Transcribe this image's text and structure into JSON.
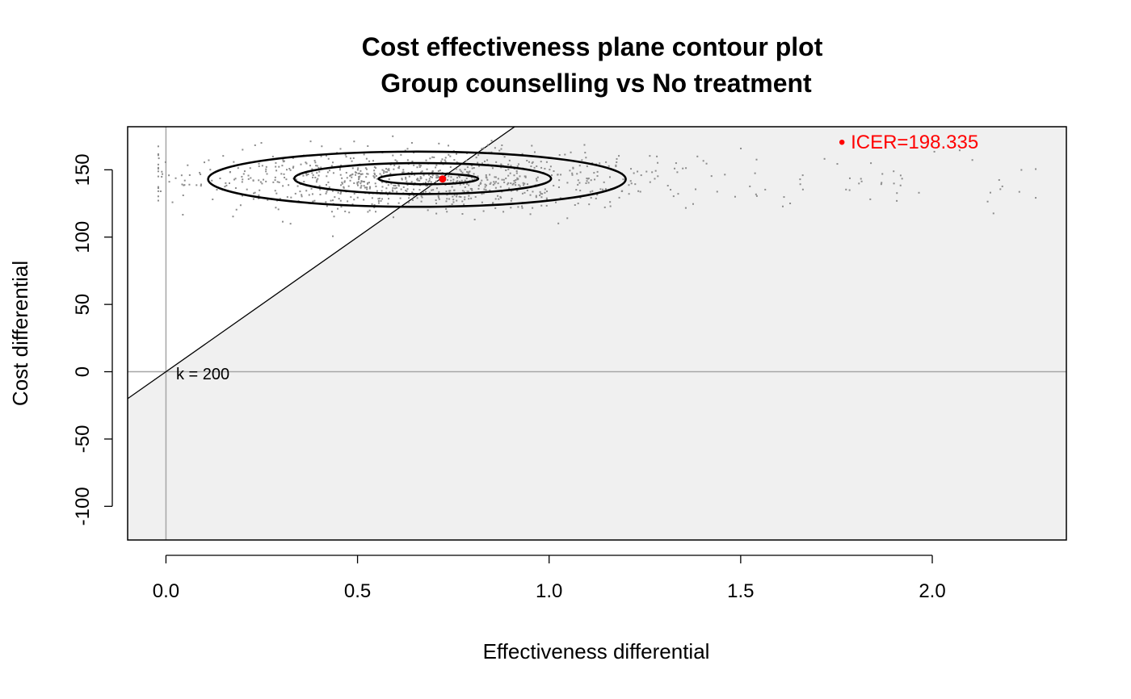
{
  "chart_data": {
    "type": "scatter",
    "title": "Cost effectiveness plane contour plot",
    "subtitle": "Group counselling vs No treatment",
    "xlabel": "Effectiveness differential",
    "ylabel": "Cost differential",
    "xlim": [
      -0.1,
      2.35
    ],
    "ylim": [
      -125,
      182
    ],
    "xticks": [
      0.0,
      0.5,
      1.0,
      1.5,
      2.0
    ],
    "xtick_labels": [
      "0.0",
      "0.5",
      "1.0",
      "1.5",
      "2.0"
    ],
    "yticks": [
      -100,
      -50,
      0,
      50,
      100,
      150
    ],
    "ytick_labels": [
      "-100",
      "-50",
      "0",
      "50",
      "100",
      "150"
    ],
    "wtp_label": "k = 200",
    "wtp_k": 200,
    "icer_label": "• ICER=198.335",
    "icer_point": {
      "x": 0.722,
      "y": 143.2
    },
    "colors": {
      "points": "#8c8c8c",
      "icer": "#ff0000",
      "shade": "#f0f0f0",
      "axes_lines": "#a6a6a6",
      "contour": "#000000"
    },
    "contours": [
      {
        "level": "outer",
        "cx": 0.655,
        "cy": 143.0,
        "rx": 0.545,
        "ry": 20.5
      },
      {
        "level": "middle",
        "cx": 0.67,
        "cy": 143.5,
        "rx": 0.335,
        "ry": 11.5
      },
      {
        "level": "inner",
        "cx": 0.685,
        "cy": 143.3,
        "rx": 0.13,
        "ry": 4.0
      }
    ],
    "points_note_count": 1000
  }
}
